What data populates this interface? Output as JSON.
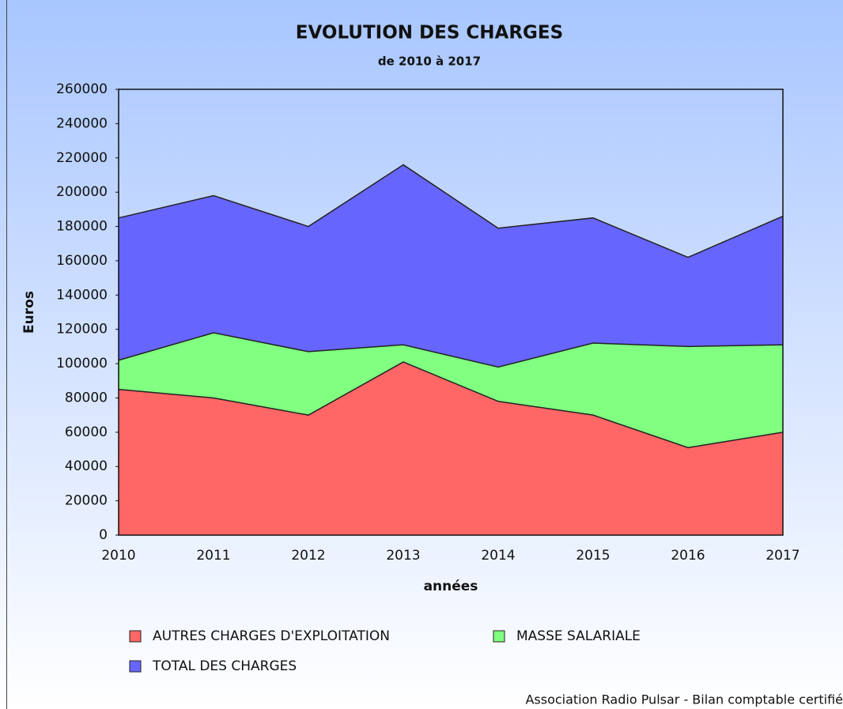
{
  "chart_data": {
    "type": "area",
    "title": "EVOLUTION DES CHARGES",
    "subtitle": "de 2010 à 2017",
    "x_label": "années",
    "y_label": "Euros",
    "categories": [
      "2010",
      "2011",
      "2012",
      "2013",
      "2014",
      "2015",
      "2016",
      "2017"
    ],
    "series": [
      {
        "name": "AUTRES CHARGES D'EXPLOITATION",
        "color": "#ff6666",
        "values": [
          85000,
          80000,
          70000,
          101000,
          78000,
          70000,
          51000,
          60000
        ]
      },
      {
        "name": "MASSE SALARIALE",
        "color": "#80ff80",
        "values": [
          102000,
          118000,
          107000,
          111000,
          98000,
          112000,
          110000,
          111000
        ]
      },
      {
        "name": "TOTAL DES CHARGES",
        "color": "#6666ff",
        "values": [
          185000,
          198000,
          180000,
          216000,
          179000,
          185000,
          162000,
          186000
        ]
      }
    ],
    "ylim": [
      0,
      260000
    ],
    "yticks": [
      0,
      20000,
      40000,
      60000,
      80000,
      100000,
      120000,
      140000,
      160000,
      180000,
      200000,
      220000,
      240000,
      260000
    ],
    "footer": "Association Radio Pulsar - Bilan comptable certifié"
  }
}
